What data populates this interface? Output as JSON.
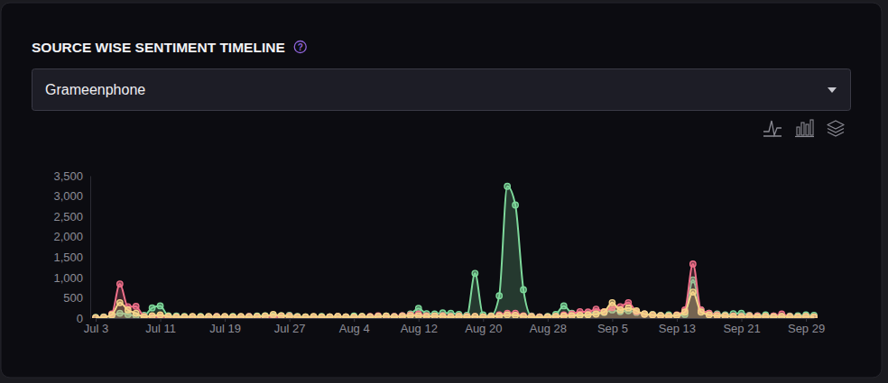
{
  "chart_data": {
    "type": "area",
    "title": "SOURCE WISE SENTIMENT TIMELINE",
    "categories": [
      "Jul 3",
      null,
      null,
      null,
      null,
      null,
      null,
      null,
      "Jul 11",
      null,
      null,
      null,
      null,
      null,
      null,
      null,
      "Jul 19",
      null,
      null,
      null,
      null,
      null,
      null,
      null,
      "Jul 27",
      null,
      null,
      null,
      null,
      null,
      null,
      null,
      "Aug 4",
      null,
      null,
      null,
      null,
      null,
      null,
      null,
      "Aug 12",
      null,
      null,
      null,
      null,
      null,
      null,
      null,
      "Aug 20",
      null,
      null,
      null,
      null,
      null,
      null,
      null,
      "Aug 28",
      null,
      null,
      null,
      null,
      null,
      null,
      null,
      "Sep 5",
      null,
      null,
      null,
      null,
      null,
      null,
      null,
      "Sep 13",
      null,
      null,
      null,
      null,
      null,
      null,
      null,
      "Sep 21",
      null,
      null,
      null,
      null,
      null,
      null,
      null,
      "Sep 29",
      null
    ],
    "series": [
      {
        "color": "#7ed99b",
        "values": [
          20,
          30,
          60,
          120,
          90,
          60,
          70,
          250,
          300,
          60,
          50,
          40,
          30,
          40,
          30,
          40,
          30,
          40,
          30,
          40,
          50,
          60,
          50,
          60,
          70,
          40,
          30,
          30,
          40,
          30,
          40,
          30,
          50,
          40,
          30,
          40,
          50,
          40,
          60,
          100,
          240,
          110,
          100,
          130,
          120,
          90,
          70,
          1100,
          80,
          60,
          550,
          3240,
          2780,
          700,
          50,
          30,
          40,
          90,
          300,
          120,
          80,
          100,
          150,
          140,
          200,
          160,
          180,
          140,
          100,
          90,
          70,
          80,
          60,
          90,
          940,
          200,
          120,
          100,
          80,
          110,
          120,
          70,
          60,
          80,
          50,
          40,
          50,
          60,
          80,
          70
        ]
      },
      {
        "color": "#f0708a",
        "values": [
          10,
          20,
          100,
          840,
          280,
          290,
          40,
          30,
          40,
          30,
          30,
          20,
          30,
          20,
          30,
          40,
          30,
          20,
          30,
          40,
          30,
          40,
          30,
          40,
          50,
          30,
          20,
          30,
          20,
          30,
          40,
          30,
          20,
          30,
          40,
          60,
          30,
          40,
          60,
          80,
          100,
          60,
          50,
          60,
          40,
          50,
          40,
          40,
          30,
          40,
          80,
          120,
          120,
          60,
          40,
          30,
          30,
          40,
          80,
          100,
          160,
          150,
          220,
          160,
          260,
          280,
          380,
          160,
          100,
          80,
          60,
          50,
          80,
          200,
          1330,
          200,
          120,
          80,
          60,
          50,
          40,
          60,
          50,
          40,
          50,
          100,
          40,
          30,
          40,
          30
        ]
      },
      {
        "color": "#f5d58a",
        "values": [
          10,
          20,
          80,
          380,
          200,
          120,
          30,
          60,
          80,
          40,
          30,
          30,
          40,
          30,
          40,
          30,
          40,
          30,
          40,
          30,
          40,
          50,
          90,
          60,
          40,
          30,
          30,
          40,
          30,
          30,
          40,
          30,
          30,
          40,
          30,
          40,
          50,
          30,
          40,
          60,
          60,
          40,
          50,
          40,
          30,
          40,
          30,
          40,
          30,
          40,
          50,
          80,
          70,
          40,
          30,
          20,
          30,
          40,
          50,
          60,
          70,
          80,
          100,
          150,
          380,
          200,
          250,
          180,
          100,
          80,
          60,
          50,
          70,
          150,
          640,
          150,
          80,
          60,
          50,
          40,
          30,
          40,
          30,
          40,
          30,
          40,
          30,
          30,
          40,
          30
        ]
      }
    ],
    "ylim": [
      0,
      3500
    ],
    "yticks": [
      0,
      500,
      {
        "value": 1000,
        "label": "1,000"
      },
      {
        "value": 1500,
        "label": "1,500"
      },
      {
        "value": 2000,
        "label": "2,000"
      },
      {
        "value": 2500,
        "label": "2,500"
      },
      {
        "value": 3000,
        "label": "3,000"
      },
      {
        "value": 3500,
        "label": "3,500"
      }
    ],
    "grid": false,
    "marker": "circle",
    "stacked": false
  },
  "help_icon": "?",
  "dropdown": {
    "selected": "Grameenphone"
  }
}
